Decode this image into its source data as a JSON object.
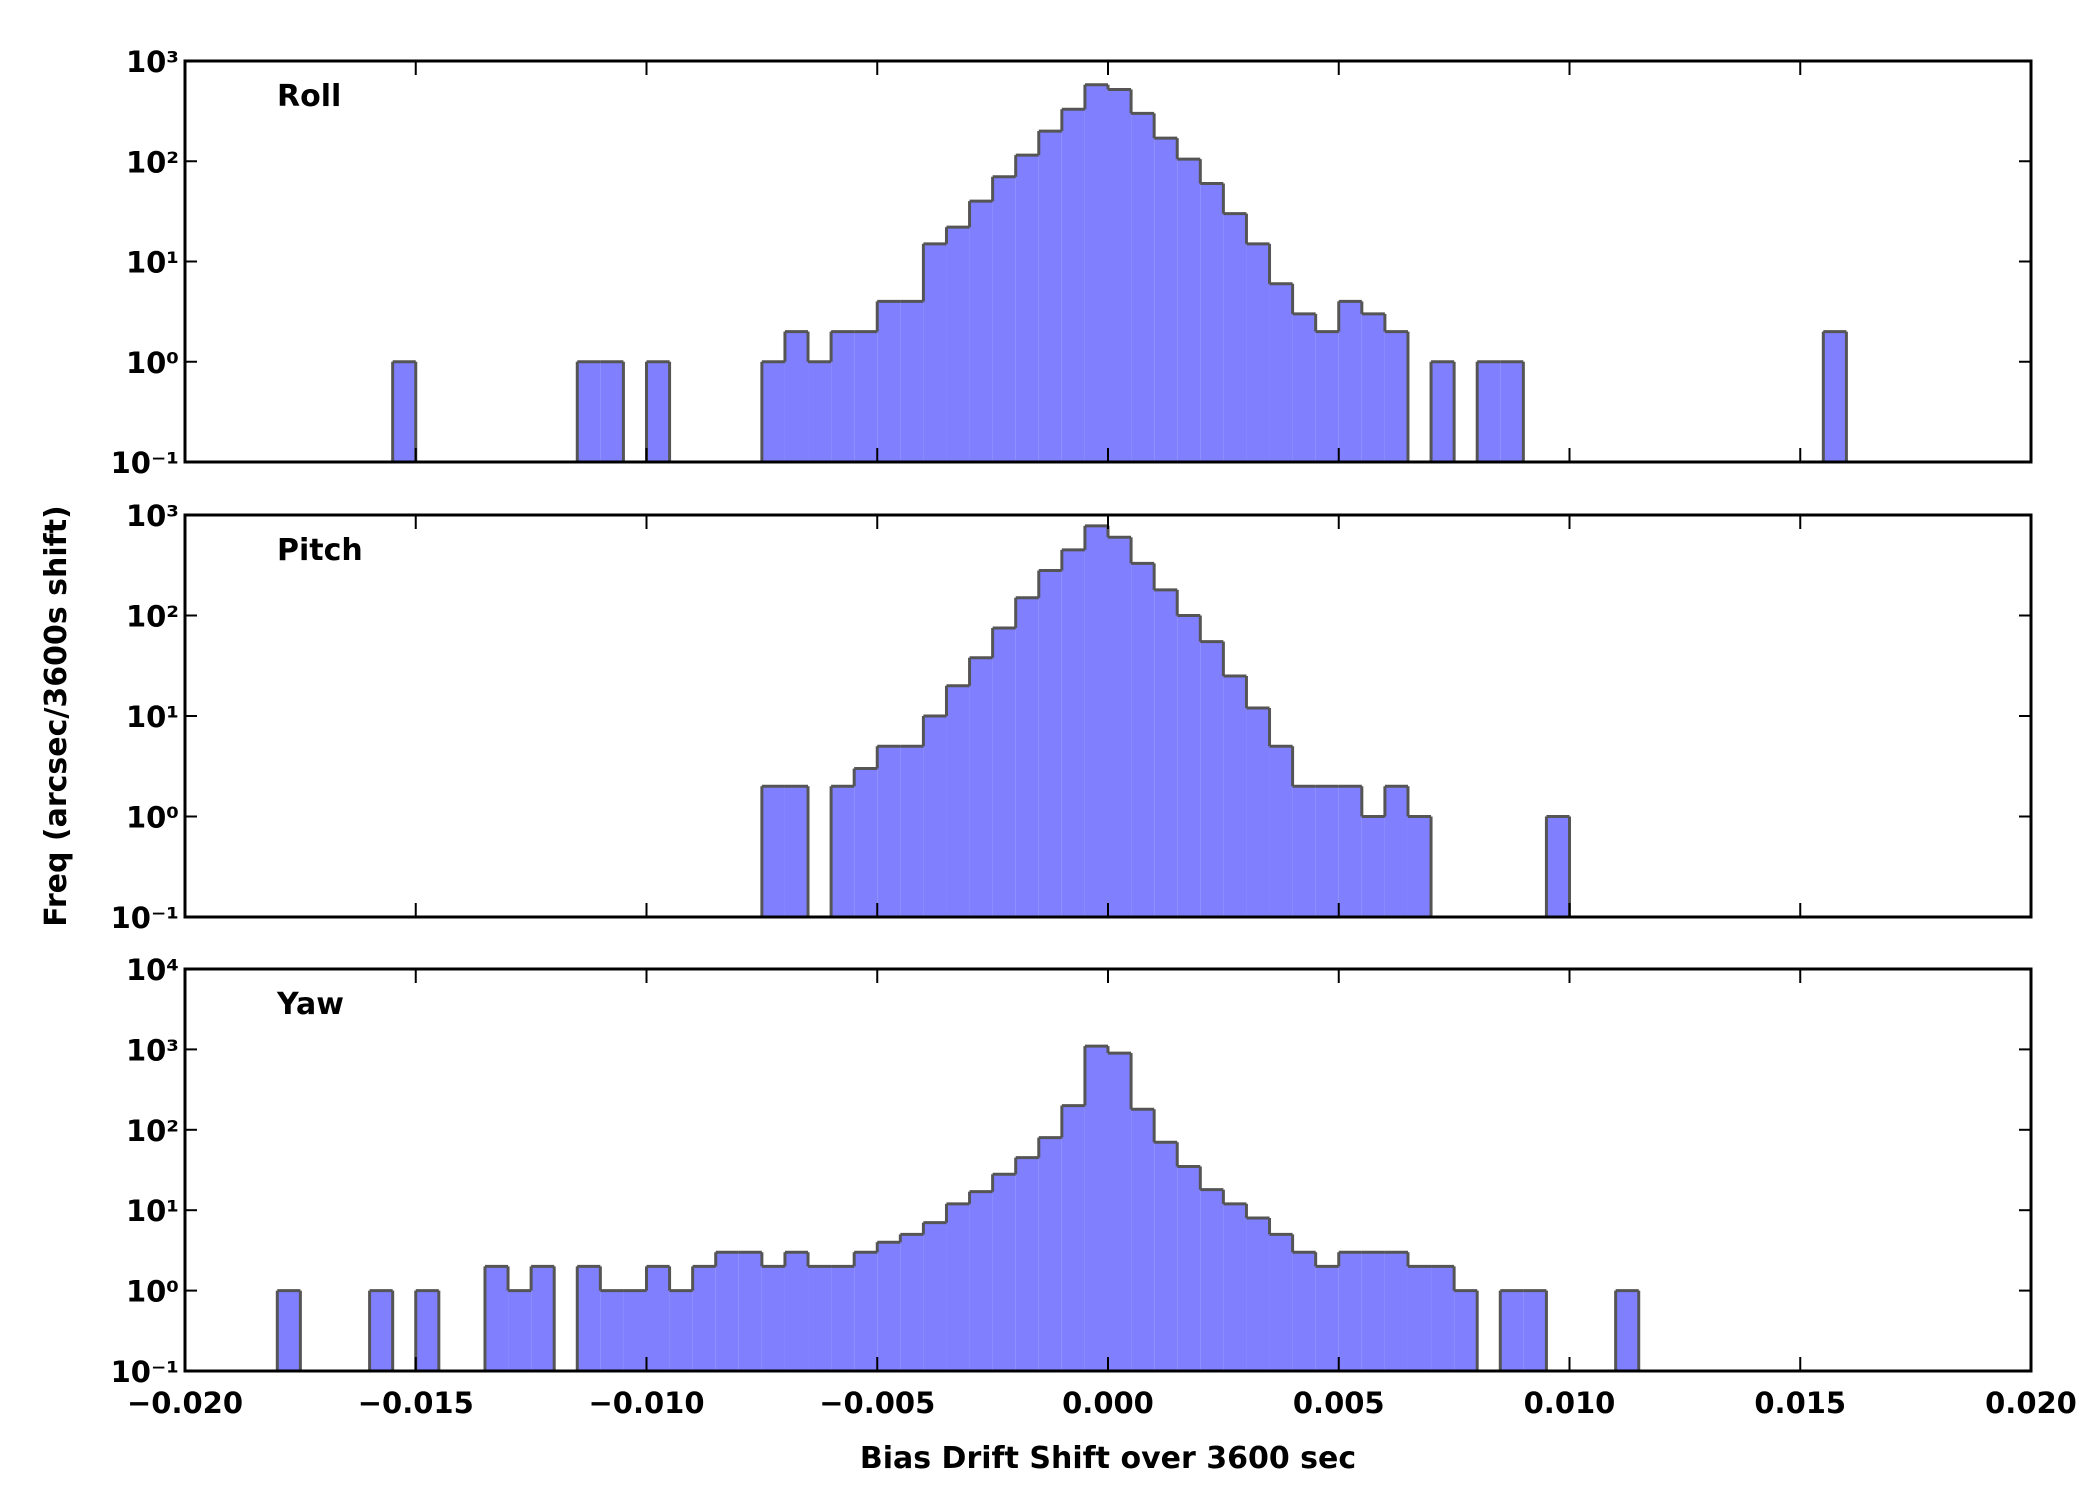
{
  "chart_data": [
    {
      "type": "histogram",
      "title": "Roll",
      "color": "#8080ff",
      "edgecolor": "#555555",
      "yscale": "log",
      "xlim": [
        -0.02,
        0.02
      ],
      "ylim": [
        0.1,
        1000
      ],
      "yticks": [
        {
          "value": 0.1,
          "label": "10⁻¹"
        },
        {
          "value": 1,
          "label": "10⁰"
        },
        {
          "value": 10,
          "label": "10¹"
        },
        {
          "value": 100,
          "label": "10²"
        },
        {
          "value": 1000,
          "label": "10³"
        }
      ],
      "bins": [
        -0.0155,
        -0.015,
        -0.0145,
        -0.014,
        -0.0135,
        -0.013,
        -0.0125,
        -0.012,
        -0.0115,
        -0.011,
        -0.0105,
        -0.01,
        -0.0095,
        -0.009,
        -0.0085,
        -0.008,
        -0.0075,
        -0.007,
        -0.0065,
        -0.006,
        -0.0055,
        -0.005,
        -0.0045,
        -0.004,
        -0.0035,
        -0.003,
        -0.0025,
        -0.002,
        -0.0015,
        -0.001,
        -0.0005,
        0,
        0.0005,
        0.001,
        0.0015,
        0.002,
        0.0025,
        0.003,
        0.0035,
        0.004,
        0.0045,
        0.005,
        0.0055,
        0.006,
        0.0065,
        0.007,
        0.0075,
        0.008,
        0.0085,
        0.009,
        0.0095,
        0.01,
        0.0105,
        0.011,
        0.0115,
        0.012,
        0.0125,
        0.013,
        0.0135,
        0.014,
        0.0145,
        0.015,
        0.0155,
        0.016
      ],
      "values": [
        1,
        0,
        0,
        0,
        0,
        0,
        0,
        0,
        1,
        1,
        0,
        1,
        0,
        0,
        0,
        0,
        1,
        2,
        1,
        2,
        2,
        4,
        4,
        15,
        22,
        40,
        70,
        115,
        200,
        330,
        580,
        520,
        300,
        170,
        105,
        60,
        30,
        15,
        6,
        3,
        2,
        4,
        3,
        2,
        0,
        1,
        0,
        1,
        1,
        0,
        0,
        0,
        0,
        0,
        0,
        0,
        0,
        0,
        0,
        0,
        0,
        0,
        2
      ]
    },
    {
      "type": "histogram",
      "title": "Pitch",
      "ylabel": "Freq (arcsec/3600s shift)",
      "color": "#8080ff",
      "edgecolor": "#555555",
      "yscale": "log",
      "xlim": [
        -0.02,
        0.02
      ],
      "ylim": [
        0.1,
        1000
      ],
      "yticks": [
        {
          "value": 0.1,
          "label": "10⁻¹"
        },
        {
          "value": 1,
          "label": "10⁰"
        },
        {
          "value": 10,
          "label": "10¹"
        },
        {
          "value": 100,
          "label": "10²"
        },
        {
          "value": 1000,
          "label": "10³"
        }
      ],
      "bins": [
        -0.0075,
        -0.007,
        -0.0065,
        -0.006,
        -0.0055,
        -0.005,
        -0.0045,
        -0.004,
        -0.0035,
        -0.003,
        -0.0025,
        -0.002,
        -0.0015,
        -0.001,
        -0.0005,
        0,
        0.0005,
        0.001,
        0.0015,
        0.002,
        0.0025,
        0.003,
        0.0035,
        0.004,
        0.0045,
        0.005,
        0.0055,
        0.006,
        0.0065,
        0.007,
        0.0075,
        0.008,
        0.0085,
        0.009,
        0.0095,
        0.01
      ],
      "values": [
        2,
        2,
        0,
        2,
        3,
        5,
        5,
        10,
        20,
        38,
        75,
        150,
        280,
        450,
        780,
        600,
        330,
        180,
        100,
        55,
        25,
        12,
        5,
        2,
        2,
        2,
        1,
        2,
        1,
        0,
        0,
        0,
        0,
        0,
        1
      ]
    },
    {
      "type": "histogram",
      "title": "Yaw",
      "xlabel": "Bias Drift Shift over 3600 sec",
      "color": "#8080ff",
      "edgecolor": "#555555",
      "yscale": "log",
      "xlim": [
        -0.02,
        0.02
      ],
      "ylim": [
        0.1,
        10000
      ],
      "xticks": [
        {
          "value": -0.02,
          "label": "−0.020"
        },
        {
          "value": -0.015,
          "label": "−0.015"
        },
        {
          "value": -0.01,
          "label": "−0.010"
        },
        {
          "value": -0.005,
          "label": "−0.005"
        },
        {
          "value": 0,
          "label": "0.000"
        },
        {
          "value": 0.005,
          "label": "0.005"
        },
        {
          "value": 0.01,
          "label": "0.010"
        },
        {
          "value": 0.015,
          "label": "0.015"
        },
        {
          "value": 0.02,
          "label": "0.020"
        }
      ],
      "yticks": [
        {
          "value": 0.1,
          "label": "10⁻¹"
        },
        {
          "value": 1,
          "label": "10⁰"
        },
        {
          "value": 10,
          "label": "10¹"
        },
        {
          "value": 100,
          "label": "10²"
        },
        {
          "value": 1000,
          "label": "10³"
        },
        {
          "value": 10000,
          "label": "10⁴"
        }
      ],
      "bins": [
        -0.018,
        -0.0175,
        -0.017,
        -0.0165,
        -0.016,
        -0.0155,
        -0.015,
        -0.0145,
        -0.014,
        -0.0135,
        -0.013,
        -0.0125,
        -0.012,
        -0.0115,
        -0.011,
        -0.0105,
        -0.01,
        -0.0095,
        -0.009,
        -0.0085,
        -0.008,
        -0.0075,
        -0.007,
        -0.0065,
        -0.006,
        -0.0055,
        -0.005,
        -0.0045,
        -0.004,
        -0.0035,
        -0.003,
        -0.0025,
        -0.002,
        -0.0015,
        -0.001,
        -0.0005,
        0,
        0.0005,
        0.001,
        0.0015,
        0.002,
        0.0025,
        0.003,
        0.0035,
        0.004,
        0.0045,
        0.005,
        0.0055,
        0.006,
        0.0065,
        0.007,
        0.0075,
        0.008,
        0.0085,
        0.009,
        0.0095,
        0.01,
        0.0105,
        0.011,
        0.0115
      ],
      "values": [
        1,
        0,
        0,
        0,
        1,
        0,
        1,
        0,
        0,
        2,
        1,
        2,
        0,
        2,
        1,
        1,
        2,
        1,
        2,
        3,
        3,
        2,
        3,
        2,
        2,
        3,
        4,
        5,
        7,
        12,
        17,
        28,
        45,
        80,
        200,
        1100,
        900,
        180,
        70,
        35,
        18,
        12,
        8,
        5,
        3,
        2,
        3,
        3,
        3,
        2,
        2,
        1,
        0,
        1,
        1,
        0,
        0,
        0,
        1
      ]
    }
  ]
}
